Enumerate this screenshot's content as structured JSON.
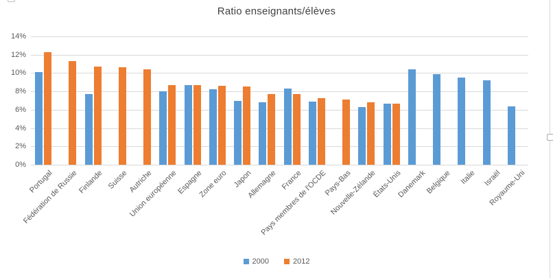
{
  "chart_data": {
    "type": "bar",
    "title": "Ratio enseignants/élèves",
    "categories": [
      "Portugal",
      "Fédération de Russie",
      "Finlande",
      "Suisse",
      "Autriche",
      "Union européenne",
      "Espagne",
      "Zone euro",
      "Japon",
      "Allemagne",
      "France",
      "Pays membres de l'OCDE",
      "Pays-Bas",
      "Nouvelle-Zélande",
      "États-Unis",
      "Danemark",
      "Belgique",
      "Italie",
      "Israël",
      "Royaume-Uni"
    ],
    "series": [
      {
        "name": "2000",
        "color": "#5B9BD5",
        "values": [
          10.1,
          null,
          7.7,
          null,
          null,
          8.0,
          8.7,
          8.2,
          7.0,
          6.8,
          8.3,
          6.9,
          null,
          6.3,
          6.7,
          10.4,
          9.9,
          9.5,
          9.2,
          6.4
        ]
      },
      {
        "name": "2012",
        "color": "#ED7D31",
        "values": [
          12.3,
          11.3,
          10.7,
          10.6,
          10.4,
          8.7,
          8.7,
          8.6,
          8.5,
          7.7,
          7.7,
          7.3,
          7.1,
          6.8,
          6.7,
          null,
          null,
          null,
          null,
          null
        ]
      }
    ],
    "ylim": [
      0,
      14
    ],
    "ytick_step": 2,
    "y_tick_labels": [
      "0%",
      "2%",
      "4%",
      "6%",
      "8%",
      "10%",
      "12%",
      "14%"
    ],
    "xlabel": "",
    "ylabel": "",
    "grid": true,
    "legend_position": "bottom"
  },
  "colors": {
    "grid": "#d9d9d9",
    "axis_text": "#595959",
    "title_text": "#404040",
    "background": "#ffffff",
    "series_2000": "#5B9BD5",
    "series_2012": "#ED7D31"
  }
}
